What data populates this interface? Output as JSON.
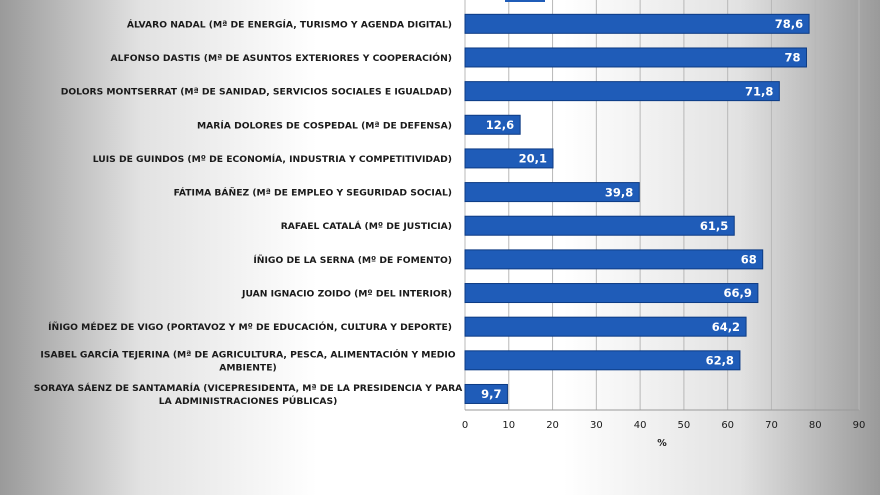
{
  "chart_data": {
    "type": "bar",
    "orientation": "horizontal",
    "categories": [
      [
        "ÁLVARO NADAL (Mª DE ENERGÍA,  TURISMO  Y AGENDA DIGITAL)"
      ],
      [
        "ALFONSO DASTIS (Mª DE ASUNTOS  EXTERIORES  Y COOPERACIÓN)"
      ],
      [
        "DOLORS MONTSERRAT  (Mª DE SANIDAD, SERVICIOS  SOCIALES E IGUALDAD)"
      ],
      [
        "MARÍA DOLORES DE COSPEDAL (Mª DE DEFENSA)"
      ],
      [
        "LUIS DE GUINDOS  (Mº DE ECONOMÍA, INDUSTRIA  Y COMPETITIVIDAD)"
      ],
      [
        "FÁTIMA BÁÑEZ (Mª DE EMPLEO Y SEGURIDAD  SOCIAL)"
      ],
      [
        "RAFAEL CATALÁ (Mº DE JUSTICIA)"
      ],
      [
        "ÍÑIGO DE LA SERNA  (Mº DE FOMENTO)"
      ],
      [
        "JUAN IGNACIO ZOIDO  (Mº DEL INTERIOR)"
      ],
      [
        "ÍÑIGO MÉDEZ  DE VIGO (PORTAVOZ Y Mº DE EDUCACIÓN,  CULTURA  Y DEPORTE)"
      ],
      [
        "ISABEL GARCÍA TEJERINA  (Mª DE AGRICULTURA,  PESCA, ALIMENTACIÓN  Y MEDIO",
        "AMBIENTE)"
      ],
      [
        "SORAYA SÁENZ DE SANTAMARÍA  (VICEPRESIDENTA,  Mª DE LA PRESIDENCIA  Y PARA",
        "LA ADMINISTRACIONES  PÚBLICAS)"
      ]
    ],
    "values": [
      78.6,
      78,
      71.8,
      12.6,
      20.1,
      39.8,
      61.5,
      68,
      66.9,
      64.2,
      62.8,
      9.7
    ],
    "value_labels": [
      "78,6",
      "78",
      "71,8",
      "12,6",
      "20,1",
      "39,8",
      "61,5",
      "68",
      "66,9",
      "64,2",
      "62,8",
      "9,7"
    ],
    "xlabel": "%",
    "xlim": [
      0,
      90
    ],
    "xticks": [
      0,
      10,
      20,
      30,
      40,
      50,
      60,
      70,
      80,
      90
    ],
    "grid": "vertical",
    "bar_color": "#1f5cb8",
    "bar_edge_color": "#0d3b84",
    "partial_bar_visible_at_top": true
  }
}
